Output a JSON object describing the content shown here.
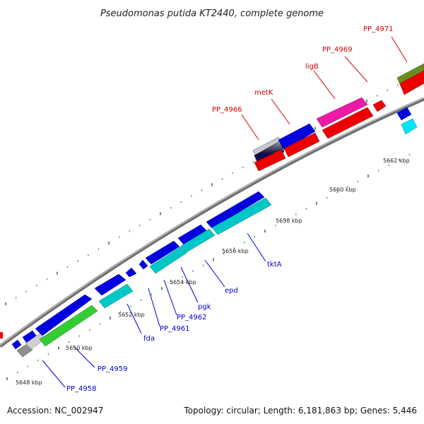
{
  "title": "Pseudomonas putida KT2440, complete genome",
  "footer": {
    "accession": "Accession: NC_002947",
    "stats": "Topology: circular; Length: 6,181,863 bp; Genes: 5,446"
  },
  "colors": {
    "backbone": "#8a8a8a",
    "tick": "#2e7d2e",
    "label_red": "#d40000",
    "label_blue": "#0000cc"
  },
  "tick_labels": [
    {
      "name": "tick-5648",
      "text": "5648 kbp"
    },
    {
      "name": "tick-5650",
      "text": "5650 kbp"
    },
    {
      "name": "tick-5652",
      "text": "5652 kbp"
    },
    {
      "name": "tick-5654",
      "text": "5654 kbp"
    },
    {
      "name": "tick-5656",
      "text": "5656 kbp"
    },
    {
      "name": "tick-5658",
      "text": "5658 kbp"
    },
    {
      "name": "tick-5660",
      "text": "5660 kbp"
    },
    {
      "name": "tick-5662",
      "text": "5662 kbp"
    }
  ],
  "upper_labels": [
    {
      "name": "label-pp4966",
      "text": "PP_4966"
    },
    {
      "name": "label-metk",
      "text": "metK"
    },
    {
      "name": "label-ligb",
      "text": "ligB"
    },
    {
      "name": "label-pp4969",
      "text": "PP_4969"
    },
    {
      "name": "label-pp4971",
      "text": "PP_4971"
    }
  ],
  "lower_labels": [
    {
      "name": "label-pp4958",
      "text": "PP_4958"
    },
    {
      "name": "label-pp4959",
      "text": "PP_4959"
    },
    {
      "name": "label-fda",
      "text": "fda"
    },
    {
      "name": "label-pp4961",
      "text": "PP_4961"
    },
    {
      "name": "label-pp4962",
      "text": "PP_4962"
    },
    {
      "name": "label-pgk",
      "text": "pgk"
    },
    {
      "name": "label-epd",
      "text": "epd"
    },
    {
      "name": "label-tkta",
      "text": "tktA"
    }
  ]
}
